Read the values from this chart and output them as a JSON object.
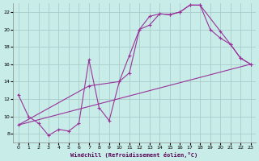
{
  "xlabel": "Windchill (Refroidissement éolien,°C)",
  "bg_color": "#c8ece8",
  "grid_color": "#aacccc",
  "line_color": "#993399",
  "xlim": [
    -0.5,
    23.5
  ],
  "ylim": [
    7,
    23
  ],
  "xticks": [
    0,
    1,
    2,
    3,
    4,
    5,
    6,
    7,
    8,
    9,
    10,
    11,
    12,
    13,
    14,
    15,
    16,
    17,
    18,
    19,
    20,
    21,
    22,
    23
  ],
  "yticks": [
    8,
    10,
    12,
    14,
    16,
    18,
    20,
    22
  ],
  "line1_x": [
    0,
    1,
    2,
    3,
    4,
    5,
    6,
    7,
    8,
    9,
    10,
    11,
    12,
    13,
    14,
    15,
    16,
    17,
    18,
    19,
    20,
    21,
    22,
    23
  ],
  "line1_y": [
    12.5,
    10.0,
    9.2,
    7.8,
    8.5,
    8.3,
    9.2,
    16.5,
    11.0,
    9.5,
    14.0,
    17.0,
    20.0,
    20.5,
    21.8,
    21.7,
    22.0,
    22.8,
    22.8,
    20.0,
    19.0,
    18.3,
    16.7,
    16.0
  ],
  "line2_x": [
    0,
    7,
    10,
    11,
    12,
    13,
    14,
    15,
    16,
    17,
    18,
    20,
    21,
    22,
    23
  ],
  "line2_y": [
    9.0,
    13.5,
    14.0,
    15.0,
    20.0,
    21.5,
    21.8,
    21.7,
    22.0,
    22.8,
    22.8,
    19.8,
    18.3,
    16.7,
    16.0
  ],
  "line3_x": [
    0,
    23
  ],
  "line3_y": [
    9.0,
    16.0
  ]
}
